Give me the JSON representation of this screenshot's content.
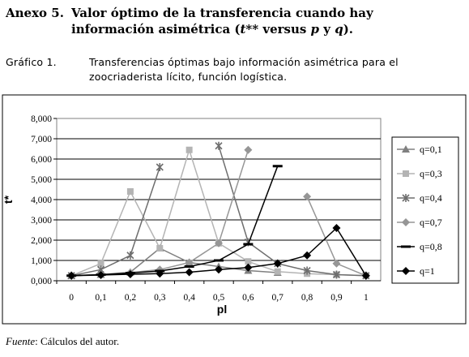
{
  "annex": {
    "number": "Anexo 5.",
    "title_line1": "Valor óptimo de la transferencia cuando hay",
    "title_line2_a": "información asimétrica (",
    "title_line2_t": "t**",
    "title_line2_b": " versus ",
    "title_line2_p": "p",
    "title_line2_c": " y ",
    "title_line2_q": "q",
    "title_line2_d": ")."
  },
  "figure": {
    "label": "Gráfico 1.",
    "caption": "Transferencias óptimas bajo información asimétrica para el zoocriaderista lícito, función logística."
  },
  "source": {
    "label": "Fuente",
    "text": ": Cálculos del autor."
  },
  "chart_data": {
    "type": "line",
    "xlabel": "pl",
    "ylabel": "t*",
    "categories": [
      "0",
      "0,1",
      "0,2",
      "0,3",
      "0,4",
      "0,5",
      "0,6",
      "0,7",
      "0,8",
      "0,9",
      "1"
    ],
    "ylim": [
      0,
      8000
    ],
    "yticks": [
      "0,000",
      "1,000",
      "2,000",
      "3,000",
      "4,000",
      "5,000",
      "6,000",
      "7,000",
      "8,000"
    ],
    "grid": true,
    "legend_position": "right",
    "series": [
      {
        "name": "q=0,1",
        "marker": "triangle",
        "color": "#808080",
        "values": [
          250,
          300,
          420,
          1600,
          900,
          700,
          500,
          400,
          null,
          null,
          null
        ]
      },
      {
        "name": "q=0,3",
        "marker": "square",
        "color": "#b4b4b4",
        "values": [
          250,
          850,
          4400,
          1600,
          6450,
          1850,
          950,
          450,
          350,
          300,
          250
        ]
      },
      {
        "name": "q=0,4",
        "marker": "star",
        "color": "#6e6e6e",
        "values": [
          250,
          550,
          1250,
          5600,
          null,
          6650,
          1900,
          850,
          500,
          300,
          250
        ]
      },
      {
        "name": "q=0,7",
        "marker": "diamond",
        "color": "#969696",
        "values": [
          250,
          300,
          400,
          550,
          900,
          1850,
          6450,
          null,
          4150,
          850,
          250
        ]
      },
      {
        "name": "q=0,8",
        "marker": "dash",
        "color": "#000000",
        "values": [
          250,
          300,
          380,
          480,
          700,
          1000,
          1800,
          5650,
          null,
          null,
          null
        ]
      },
      {
        "name": "q=1",
        "marker": "diamond-filled",
        "color": "#000000",
        "values": [
          250,
          280,
          320,
          350,
          420,
          550,
          650,
          850,
          1250,
          2600,
          250
        ]
      }
    ]
  }
}
